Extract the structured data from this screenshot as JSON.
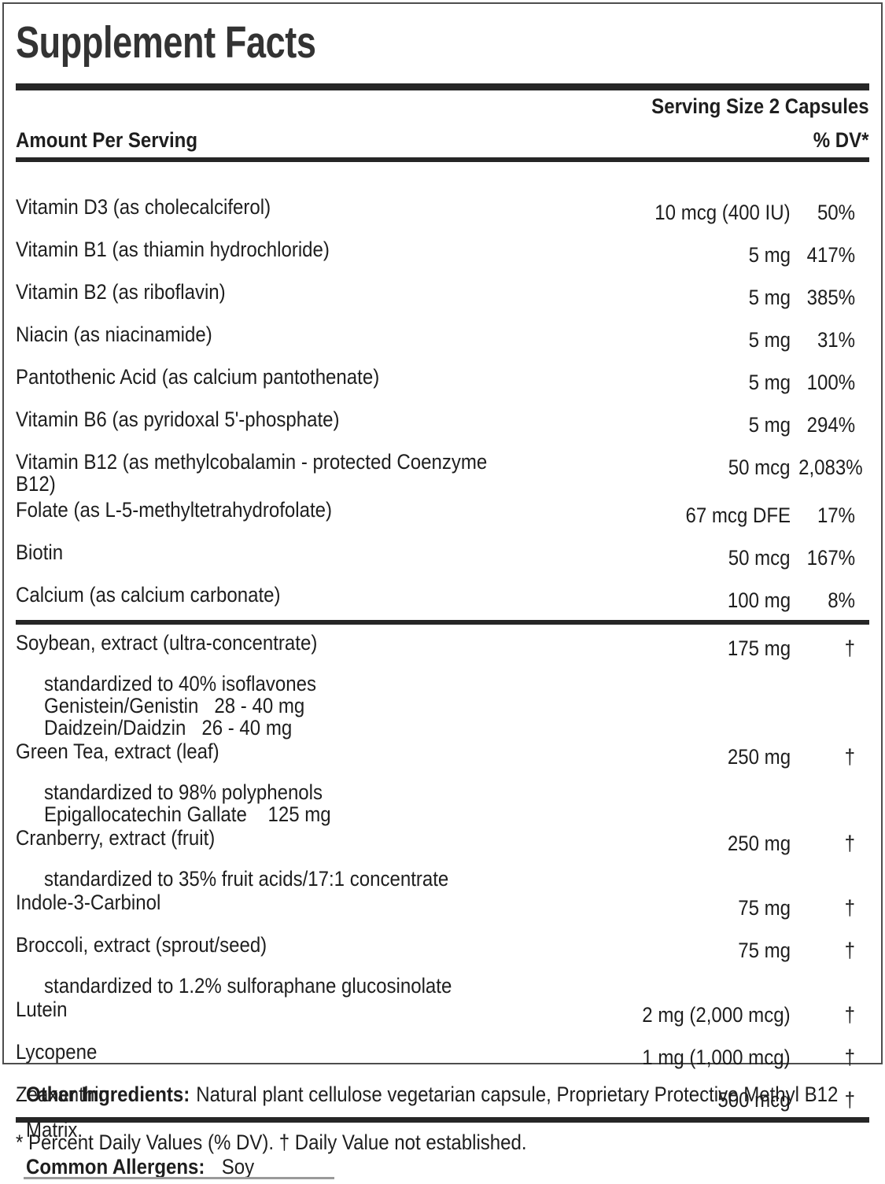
{
  "colors": {
    "text": "#1e1e1e",
    "bars": "#262626",
    "border": "#4d4d4d"
  },
  "panel": {
    "title": "Supplement Facts",
    "serving_size": "Serving Size 2 Capsules",
    "amount_header": "Amount Per Serving",
    "dv_header": "% DV*",
    "rows": [
      {
        "name": "Vitamin D3 (as cholecalciferol)",
        "amount": "10 mcg (400 IU)",
        "dv": "50%"
      },
      {
        "name": "Vitamin B1 (as thiamin hydrochloride)",
        "amount": "5 mg",
        "dv": "417%"
      },
      {
        "name": "Vitamin B2 (as riboflavin)",
        "amount": "5 mg",
        "dv": "385%"
      },
      {
        "name": "Niacin (as niacinamide)",
        "amount": "5 mg",
        "dv": "31%"
      },
      {
        "name": "Pantothenic Acid (as calcium pantothenate)",
        "amount": "5 mg",
        "dv": "100%"
      },
      {
        "name": "Vitamin B6 (as pyridoxal 5'-phosphate)",
        "amount": "5 mg",
        "dv": "294%"
      },
      {
        "name": "Vitamin B12 (as methylcobalamin - protected Coenzyme B12)",
        "amount": "50 mcg",
        "dv": "2,083%"
      },
      {
        "name": "Folate (as L-5-methyltetrahydrofolate)",
        "amount": "67 mcg DFE",
        "dv": "17%"
      },
      {
        "name": "Biotin",
        "amount": "50 mcg",
        "dv": "167%"
      },
      {
        "name": "Calcium (as calcium carbonate)",
        "amount": "100 mg",
        "dv": "8%",
        "divider_after": true
      },
      {
        "name": "Soybean, extract (ultra-concentrate)",
        "amount": "175 mg",
        "dv": "†",
        "sub": [
          "standardized to 40% isoflavones",
          "Genistein/Genistin   28 - 40 mg",
          "Daidzein/Daidzin   26 - 40 mg"
        ]
      },
      {
        "name": "Green Tea, extract (leaf)",
        "amount": "250 mg",
        "dv": "†",
        "sub": [
          "standardized to 98% polyphenols",
          "Epigallocatechin Gallate    125 mg"
        ]
      },
      {
        "name": "Cranberry, extract (fruit)",
        "amount": "250 mg",
        "dv": "†",
        "sub": [
          "standardized to 35% fruit acids/17:1 concentrate"
        ]
      },
      {
        "name": "Indole-3-Carbinol",
        "amount": "75 mg",
        "dv": "†"
      },
      {
        "name": "Broccoli, extract (sprout/seed)",
        "amount": "75 mg",
        "dv": "†",
        "sub": [
          "standardized to 1.2% sulforaphane glucosinolate"
        ]
      },
      {
        "name": "Lutein",
        "amount": "2 mg (2,000 mcg)",
        "dv": "†"
      },
      {
        "name": "Lycopene",
        "amount": "1 mg (1,000 mcg)",
        "dv": "†"
      },
      {
        "name": "Zeaxanthin",
        "amount": "500 mcg",
        "dv": "†"
      }
    ],
    "footnote": "* Percent Daily Values (% DV). † Daily Value not established."
  },
  "other_ingredients": {
    "label": "Other Ingredients:",
    "text": "Natural plant cellulose vegetarian capsule, Proprietary Protective Methyl B12 Matrix."
  },
  "allergens": {
    "label": "Common Allergens:",
    "text": "Soy"
  }
}
